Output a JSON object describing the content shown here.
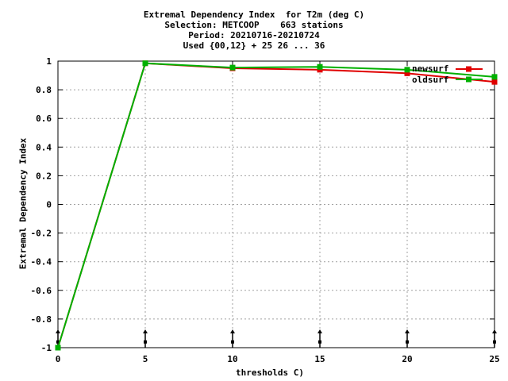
{
  "chart_data": {
    "type": "line",
    "title_lines": [
      "Extremal Dependency Index  for T2m (deg C)",
      "Selection: METCOOP    663 stations",
      "Period: 20210716-20210724",
      "Used {00,12} + 25 26 ... 36"
    ],
    "xlabel": "thresholds C)",
    "ylabel": "Extremal Dependency Index",
    "xlim": [
      0,
      25
    ],
    "ylim": [
      -1,
      1
    ],
    "xticks": [
      "0",
      "5",
      "10",
      "15",
      "20",
      "25"
    ],
    "yticks": [
      "-1",
      "-0.8",
      "-0.6",
      "-0.4",
      "-0.2",
      "0",
      "0.2",
      "0.4",
      "0.6",
      "0.8",
      "1"
    ],
    "grid": true,
    "legend_position": "top-right",
    "series": [
      {
        "name": "newsurf",
        "color": "#e00000",
        "x": [
          0,
          5,
          10,
          15,
          20,
          25
        ],
        "y": [
          -1,
          0.985,
          0.95,
          0.94,
          0.915,
          0.855
        ]
      },
      {
        "name": "oldsurf",
        "color": "#00b000",
        "x": [
          0,
          5,
          10,
          15,
          20,
          25
        ],
        "y": [
          -1,
          0.985,
          0.955,
          0.96,
          0.94,
          0.89
        ]
      }
    ]
  }
}
